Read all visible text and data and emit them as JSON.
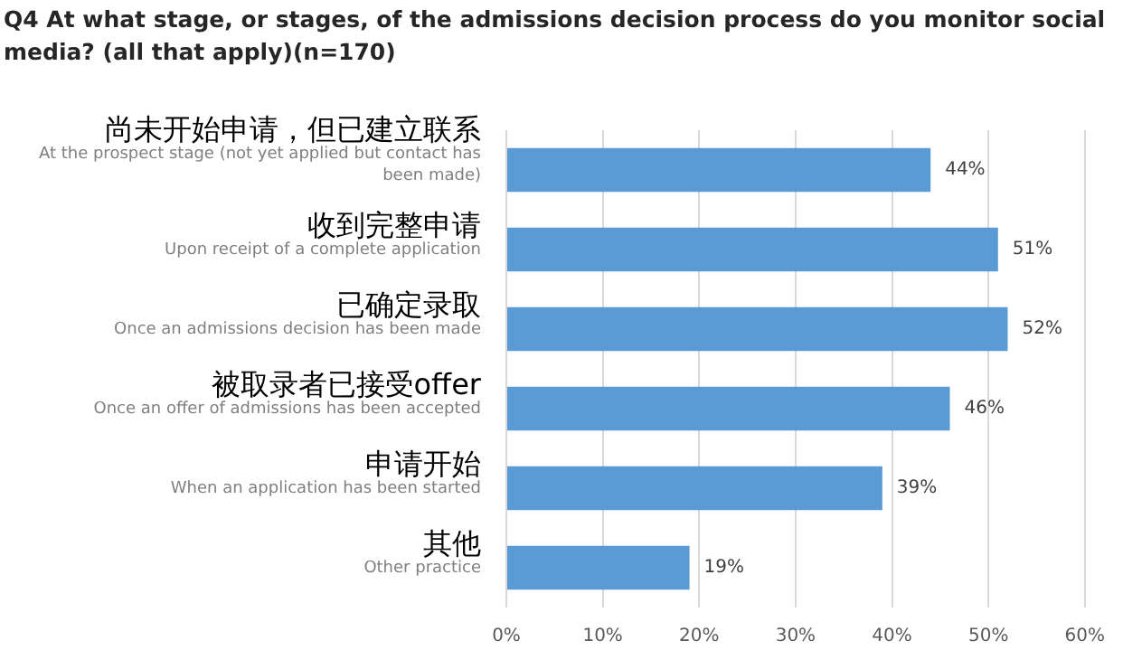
{
  "chart_data": {
    "type": "bar",
    "orientation": "horizontal",
    "title": "Q4 At what stage, or stages, of the admissions decision process do you monitor social media? (all that apply)(n=170)",
    "categories": [
      "尚未开始申请，但已建立联系\nAt the prospect stage (not yet applied but contact has been made)",
      "收到完整申请\nUpon receipt of a complete application",
      "已确定录取\nOnce an admissions decision has been made",
      "被取录者已接受offer\nOnce an offer of admissions has been accepted",
      "申请开始\nWhen an application has been started",
      "其他\nOther practice"
    ],
    "values": [
      44,
      51,
      52,
      46,
      39,
      19
    ],
    "value_labels": [
      "44%",
      "51%",
      "52%",
      "46%",
      "39%",
      "19%"
    ],
    "color": "#5b9bd5",
    "xlim": [
      0,
      60
    ],
    "xticks": [
      {
        "value": 0,
        "label": "0%"
      },
      {
        "value": 10,
        "label": "10%"
      },
      {
        "value": 20,
        "label": "20%"
      },
      {
        "value": 30,
        "label": "30%"
      },
      {
        "value": 40,
        "label": "40%"
      },
      {
        "value": 50,
        "label": "50%"
      },
      {
        "value": 60,
        "label": "60%"
      }
    ],
    "grid": "x",
    "legend": false
  }
}
